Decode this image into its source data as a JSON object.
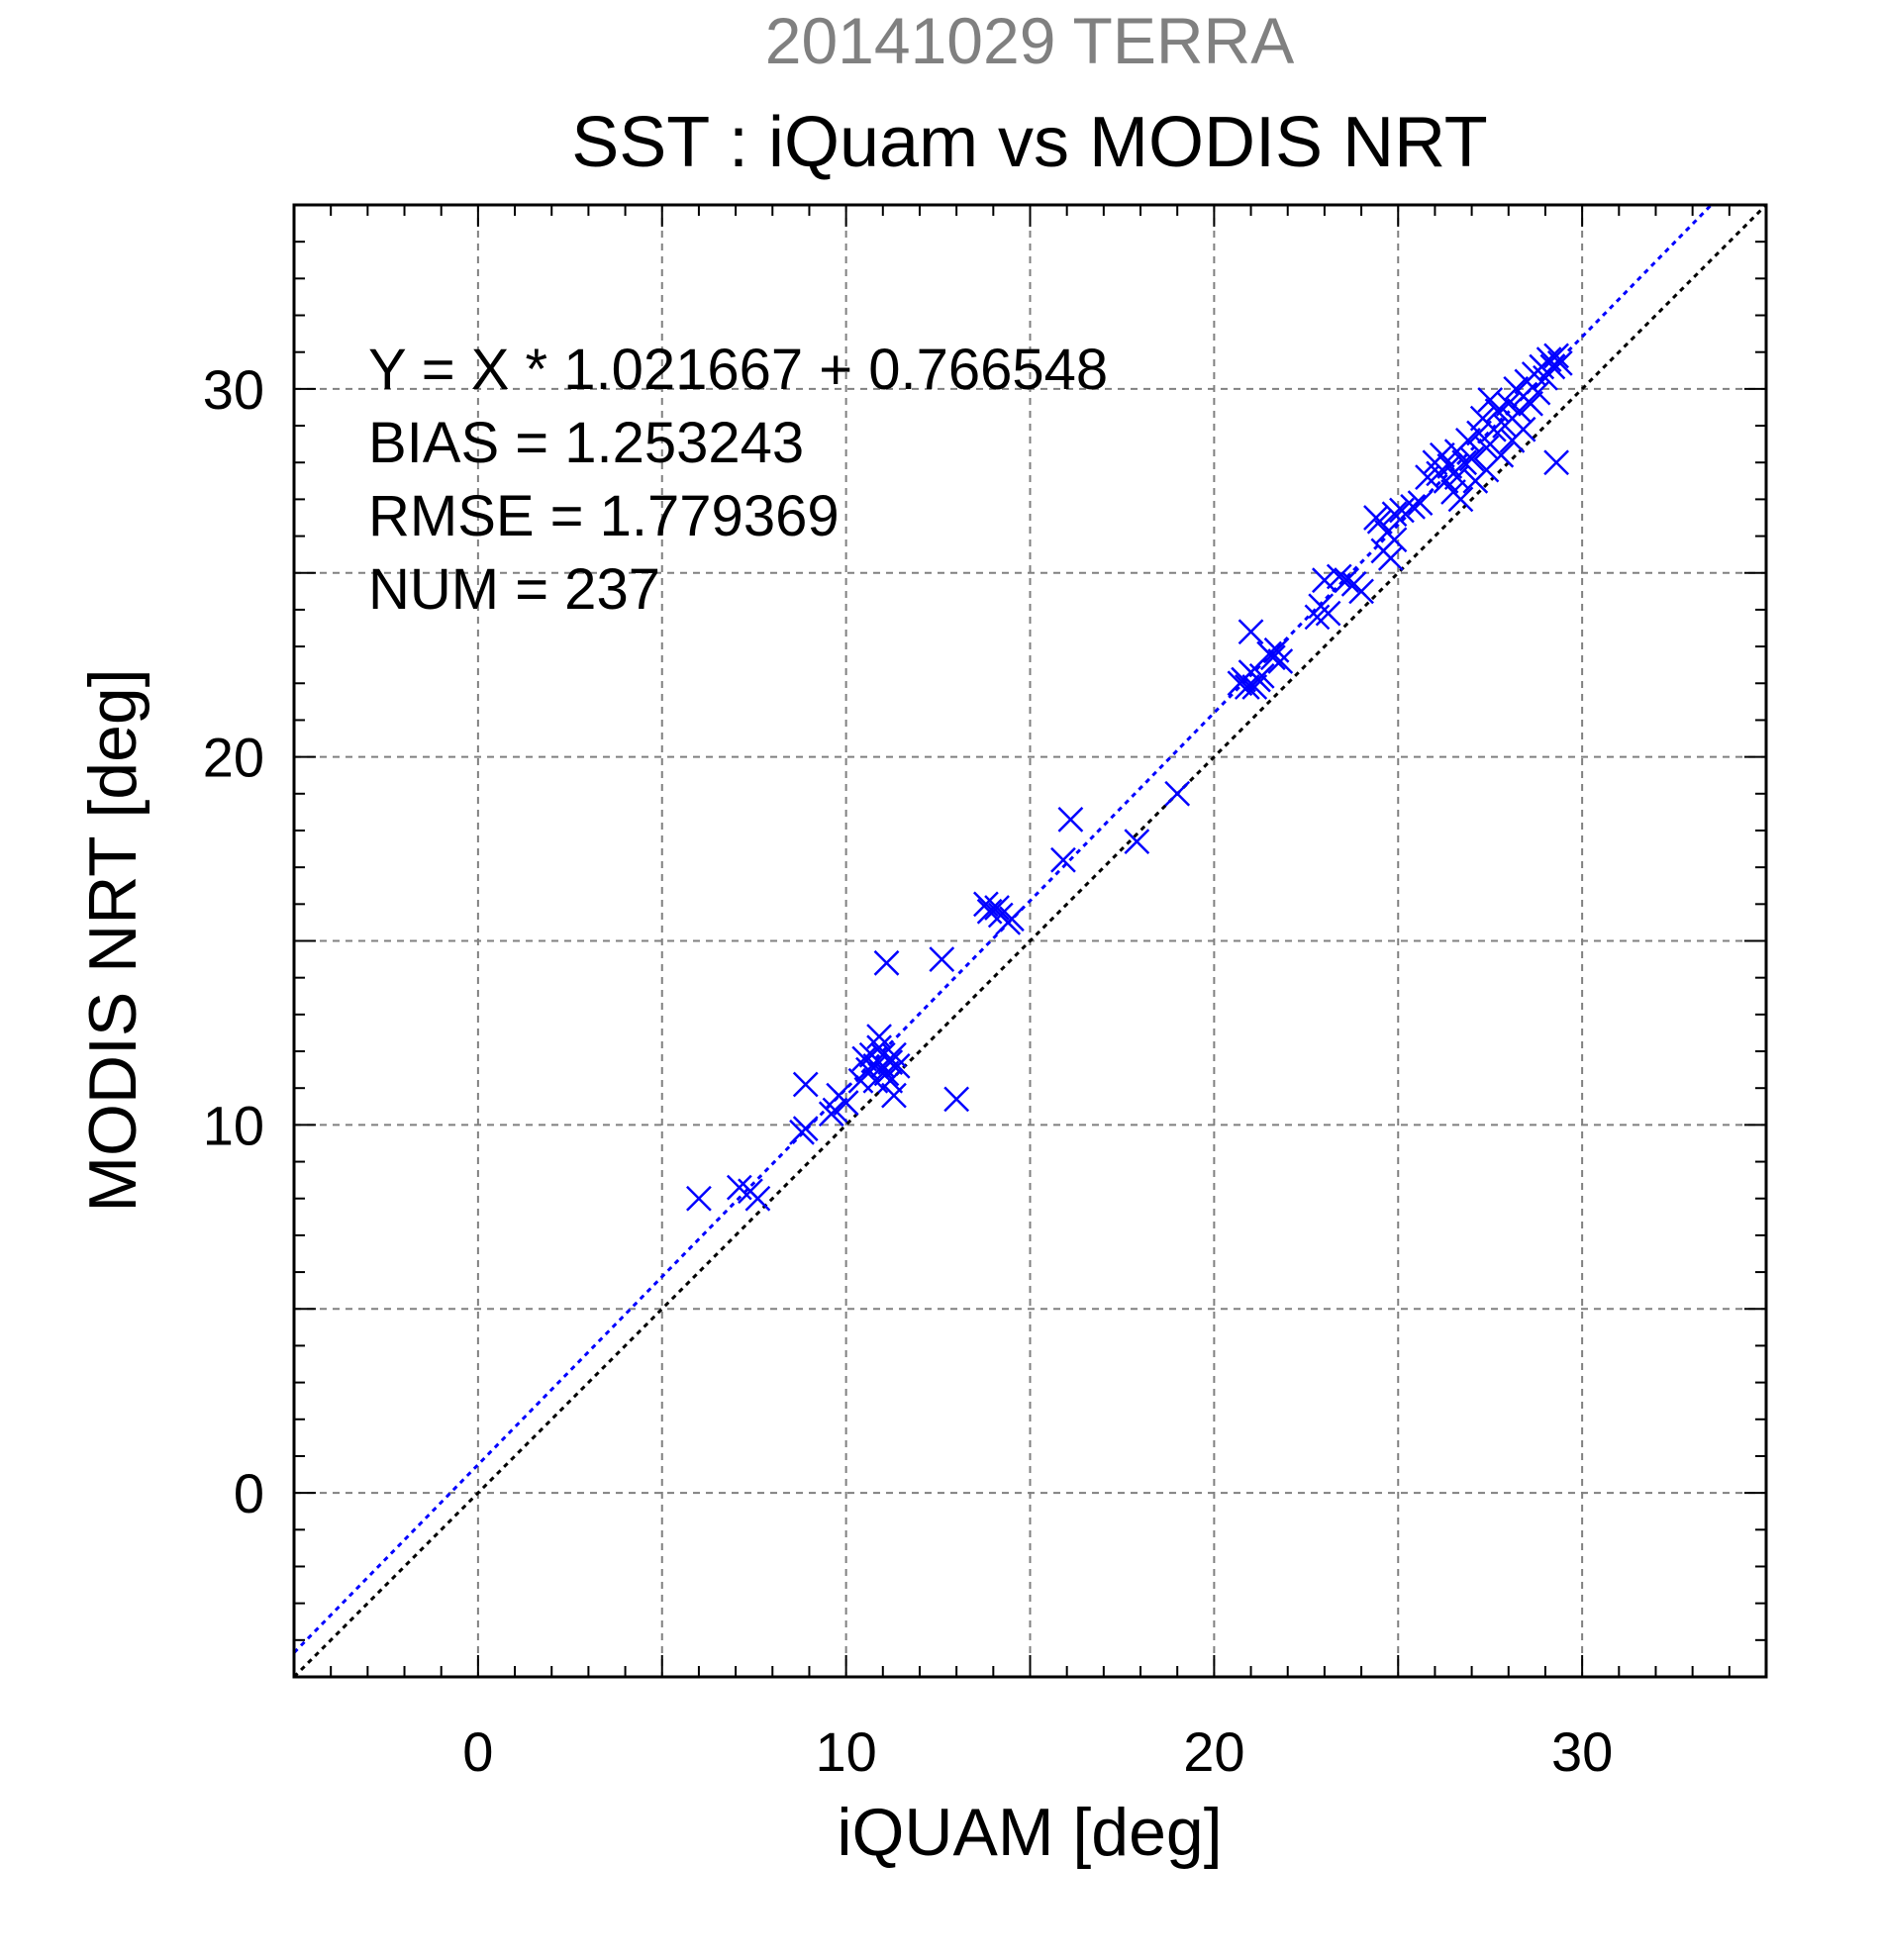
{
  "chart_data": {
    "type": "scatter",
    "title": "SST : iQuam vs MODIS NRT",
    "subtitle": "20141029 TERRA",
    "xlabel": "iQUAM [deg]",
    "ylabel": "MODIS NRT [deg]",
    "xlim": [
      -5,
      35
    ],
    "ylim": [
      -5,
      35
    ],
    "major_ticks": [
      0,
      10,
      20,
      30
    ],
    "grid_values": [
      0,
      5,
      10,
      15,
      20,
      25,
      30
    ],
    "minor_tick_step": 1,
    "grid": true,
    "stats": [
      "Y = X * 1.021667 + 0.766548",
      "BIAS = 1.253243",
      "RMSE = 1.779369",
      "NUM = 237"
    ],
    "regression": {
      "slope": 1.021667,
      "intercept": 0.766548,
      "color": "#0000ff"
    },
    "identity_line": {
      "color": "#000000"
    },
    "marker": "x",
    "marker_color": "#0000ff",
    "subtitle_color": "#808080",
    "points": [
      [
        6.0,
        8.0
      ],
      [
        7.1,
        8.3
      ],
      [
        7.4,
        8.2
      ],
      [
        7.6,
        8.0
      ],
      [
        8.8,
        9.8
      ],
      [
        8.9,
        9.9
      ],
      [
        8.9,
        11.1
      ],
      [
        9.6,
        10.3
      ],
      [
        9.7,
        10.4
      ],
      [
        9.8,
        10.8
      ],
      [
        10.0,
        10.6
      ],
      [
        10.4,
        11.2
      ],
      [
        10.5,
        11.8
      ],
      [
        10.6,
        11.5
      ],
      [
        10.7,
        11.9
      ],
      [
        10.8,
        11.6
      ],
      [
        10.8,
        11.2
      ],
      [
        10.9,
        12.4
      ],
      [
        10.9,
        12.1
      ],
      [
        11.0,
        11.9
      ],
      [
        11.0,
        11.6
      ],
      [
        11.1,
        11.4
      ],
      [
        11.2,
        11.7
      ],
      [
        11.3,
        11.9
      ],
      [
        11.4,
        11.6
      ],
      [
        11.1,
        14.4
      ],
      [
        11.2,
        11.2
      ],
      [
        11.3,
        10.8
      ],
      [
        12.6,
        14.5
      ],
      [
        13.0,
        10.7
      ],
      [
        13.8,
        16.0
      ],
      [
        13.9,
        15.8
      ],
      [
        14.1,
        15.9
      ],
      [
        14.2,
        15.7
      ],
      [
        14.4,
        15.5
      ],
      [
        14.5,
        15.6
      ],
      [
        15.9,
        17.2
      ],
      [
        16.1,
        18.3
      ],
      [
        17.9,
        17.7
      ],
      [
        19.0,
        19.0
      ],
      [
        20.7,
        22.0
      ],
      [
        20.8,
        22.1
      ],
      [
        20.9,
        21.9
      ],
      [
        21.0,
        22.3
      ],
      [
        21.0,
        23.4
      ],
      [
        21.1,
        21.9
      ],
      [
        21.2,
        22.1
      ],
      [
        21.3,
        22.2
      ],
      [
        21.5,
        22.8
      ],
      [
        21.6,
        22.7
      ],
      [
        21.7,
        22.9
      ],
      [
        21.8,
        22.6
      ],
      [
        22.8,
        23.8
      ],
      [
        22.9,
        24.1
      ],
      [
        23.0,
        24.8
      ],
      [
        23.1,
        23.9
      ],
      [
        23.4,
        24.9
      ],
      [
        23.6,
        24.8
      ],
      [
        23.8,
        24.7
      ],
      [
        24.0,
        24.5
      ],
      [
        24.4,
        26.5
      ],
      [
        24.5,
        26.4
      ],
      [
        24.6,
        25.6
      ],
      [
        24.7,
        26.1
      ],
      [
        24.8,
        25.4
      ],
      [
        24.9,
        26.6
      ],
      [
        24.9,
        25.9
      ],
      [
        25.1,
        26.7
      ],
      [
        25.4,
        26.8
      ],
      [
        25.6,
        26.9
      ],
      [
        25.8,
        27.6
      ],
      [
        26.0,
        28.0
      ],
      [
        26.1,
        27.7
      ],
      [
        26.2,
        28.2
      ],
      [
        26.3,
        27.5
      ],
      [
        26.4,
        27.9
      ],
      [
        26.5,
        27.2
      ],
      [
        26.6,
        28.3
      ],
      [
        26.6,
        27.6
      ],
      [
        26.7,
        27.0
      ],
      [
        26.8,
        28.0
      ],
      [
        26.9,
        28.6
      ],
      [
        27.0,
        28.1
      ],
      [
        27.1,
        27.5
      ],
      [
        27.2,
        28.8
      ],
      [
        27.3,
        29.2
      ],
      [
        27.4,
        28.4
      ],
      [
        27.4,
        27.8
      ],
      [
        27.5,
        29.7
      ],
      [
        27.6,
        28.9
      ],
      [
        27.7,
        29.4
      ],
      [
        27.8,
        28.2
      ],
      [
        27.9,
        29.0
      ],
      [
        28.0,
        29.6
      ],
      [
        28.1,
        28.6
      ],
      [
        28.1,
        29.2
      ],
      [
        28.2,
        30.0
      ],
      [
        28.3,
        29.4
      ],
      [
        28.4,
        28.9
      ],
      [
        28.4,
        29.8
      ],
      [
        28.5,
        30.2
      ],
      [
        28.6,
        29.6
      ],
      [
        28.7,
        30.4
      ],
      [
        28.8,
        29.9
      ],
      [
        28.9,
        30.6
      ],
      [
        29.0,
        30.3
      ],
      [
        29.1,
        30.8
      ],
      [
        29.2,
        30.6
      ],
      [
        29.3,
        30.9
      ],
      [
        29.4,
        30.7
      ],
      [
        29.3,
        28.0
      ]
    ]
  }
}
